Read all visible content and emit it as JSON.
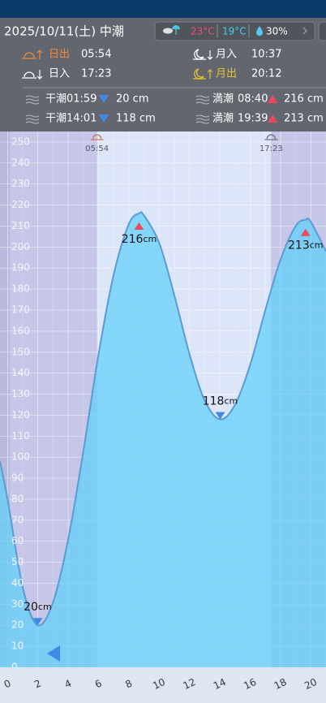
{
  "header": {
    "date": "2025/10/11(土) 中潮",
    "weather": {
      "high": "23°C",
      "low": "19°C",
      "rain": "30%"
    },
    "sun_moon": [
      {
        "label": "日出",
        "time": "05:54"
      },
      {
        "label": "月入",
        "time": "10:37"
      },
      {
        "label": "日入",
        "time": "17:23"
      },
      {
        "label": "月出",
        "time": "20:12"
      }
    ],
    "tides": [
      {
        "label": "干潮",
        "time": "01:59",
        "height": "20 cm"
      },
      {
        "label": "満潮",
        "time": "08:40",
        "height": "216 cm"
      },
      {
        "label": "干潮",
        "time": "14:01",
        "height": "118 cm"
      },
      {
        "label": "満潮",
        "time": "19:39",
        "height": "213 cm"
      }
    ]
  },
  "chart_data": {
    "type": "area",
    "unit": "cm",
    "x": [
      -0.5,
      0,
      1,
      1.98,
      3,
      4,
      5,
      6,
      7,
      8,
      8.67,
      9,
      10,
      11,
      12,
      13,
      14.02,
      15,
      16,
      17,
      18,
      19,
      19.65,
      20,
      21
    ],
    "values": [
      98,
      80,
      38,
      20,
      31,
      61,
      103,
      149,
      187,
      211,
      216,
      215,
      202,
      177,
      149,
      127,
      118,
      125,
      144,
      170,
      194,
      210,
      213,
      212,
      198
    ],
    "color": "#5b9bd5",
    "extremes": [
      {
        "x": 1.98,
        "value": 20,
        "kind": "low"
      },
      {
        "x": 8.67,
        "value": 216,
        "kind": "high"
      },
      {
        "x": 14.02,
        "value": 118,
        "kind": "low"
      },
      {
        "x": 19.65,
        "value": 213,
        "kind": "high"
      }
    ],
    "sun_markers": [
      {
        "x": 5.9,
        "label": "05:54"
      },
      {
        "x": 17.38,
        "label": "17:23"
      }
    ],
    "xlim": [
      -0.5,
      21
    ],
    "xticks": [
      0,
      2,
      4,
      6,
      8,
      10,
      12,
      14,
      16,
      18,
      20
    ],
    "ylim": [
      0,
      255
    ],
    "yticks": [
      0,
      10,
      20,
      30,
      40,
      50,
      60,
      70,
      80,
      90,
      100,
      110,
      120,
      130,
      140,
      150,
      160,
      170,
      180,
      190,
      200,
      210,
      220,
      230,
      240,
      250
    ],
    "grid": true
  }
}
